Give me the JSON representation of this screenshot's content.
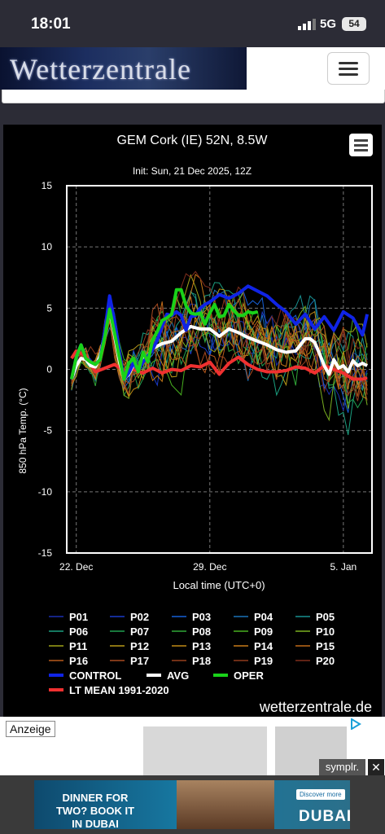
{
  "status_bar": {
    "time": "18:01",
    "network": "5G",
    "battery": "54"
  },
  "header": {
    "logo_text": "Wetterzentrale",
    "menu_icon": "hamburger-icon"
  },
  "chart_data": {
    "type": "line",
    "title": "GEM Cork (IE) 52N, 8.5W",
    "subtitle": "Init: Sun, 21 Dec 2025, 12Z",
    "xlabel": "Local time (UTC+0)",
    "ylabel": "850 hPa Temp. (°C)",
    "ylim": [
      -15,
      15
    ],
    "xlim_days": [
      21.5,
      37.5
    ],
    "xticks": [
      {
        "day": 22,
        "label": "22. Dec"
      },
      {
        "day": 29,
        "label": "29. Dec"
      },
      {
        "day": 36,
        "label": "5. Jan"
      }
    ],
    "yticks": [
      -15,
      -10,
      -5,
      0,
      5,
      10,
      15
    ],
    "grid": true,
    "credit": "wetterzentrale.de",
    "series": [
      {
        "name": "OPER",
        "color": "#19d219",
        "width": 4,
        "x": [
          21.75,
          22.0,
          22.25,
          22.5,
          22.75,
          23.0,
          23.25,
          23.5,
          23.75,
          24.0,
          24.25,
          24.5,
          24.75,
          25.0,
          25.25,
          25.5,
          25.75,
          26.0,
          26.25,
          26.5,
          26.75,
          27.0,
          27.25,
          27.5,
          27.75,
          28.0,
          28.25,
          28.5,
          28.75,
          29.0,
          29.25,
          29.5,
          29.75,
          30.0,
          30.25,
          30.5,
          30.75,
          31.0,
          31.25,
          31.5
        ],
        "y": [
          -0.8,
          1.0,
          2.0,
          0.9,
          0.6,
          0.4,
          0.8,
          2.7,
          4.9,
          3.0,
          1.0,
          -0.8,
          0.5,
          0.9,
          -0.2,
          1.4,
          0.6,
          2.4,
          3.1,
          4.0,
          4.2,
          4.5,
          6.5,
          6.5,
          5.2,
          4.6,
          4.5,
          4.6,
          3.7,
          4.6,
          5.3,
          4.3,
          4.4,
          5.3,
          4.8,
          4.4,
          4.4,
          4.7,
          4.6,
          4.7
        ]
      },
      {
        "name": "CONTROL",
        "color": "#1024e6",
        "width": 4,
        "x": [
          21.75,
          22.0,
          22.25,
          22.5,
          22.75,
          23.0,
          23.25,
          23.5,
          23.75,
          24.0,
          24.25,
          24.5,
          24.75,
          25.0,
          25.25,
          25.5,
          25.75,
          26.0,
          26.25,
          26.5,
          26.75,
          27.0,
          27.25,
          27.5,
          27.75,
          28.0,
          28.25,
          28.5,
          28.75,
          29.0,
          29.5,
          30.0,
          30.5,
          31.0,
          31.5,
          32.0,
          32.5,
          33.0,
          33.5,
          34.0,
          34.5,
          35.0,
          35.5,
          36.0,
          36.5,
          37.0,
          37.25
        ],
        "y": [
          -0.8,
          1.0,
          2.0,
          0.9,
          0.6,
          0.4,
          0.8,
          3.2,
          6.0,
          4.0,
          1.5,
          -0.8,
          -0.3,
          0.5,
          -0.1,
          0.6,
          1.1,
          1.6,
          2.4,
          3.5,
          4.5,
          4.4,
          4.7,
          4.4,
          3.2,
          4.3,
          4.4,
          5.0,
          5.3,
          5.5,
          6.1,
          5.8,
          6.2,
          6.8,
          6.4,
          6.0,
          5.3,
          4.7,
          3.7,
          4.5,
          3.3,
          4.3,
          3.2,
          4.7,
          4.2,
          2.8,
          4.5
        ]
      },
      {
        "name": "AVG",
        "color": "#ffffff",
        "width": 4,
        "x": [
          21.75,
          22.0,
          22.25,
          22.5,
          22.75,
          23.0,
          23.25,
          23.5,
          23.75,
          24.0,
          24.25,
          24.5,
          24.75,
          25.0,
          25.25,
          25.5,
          25.75,
          26.0,
          26.5,
          27.0,
          27.5,
          28.0,
          28.5,
          29.0,
          29.5,
          30.0,
          30.5,
          31.0,
          31.5,
          32.0,
          32.5,
          33.0,
          33.5,
          34.0,
          34.25,
          34.5,
          34.75,
          35.0,
          35.25,
          35.5,
          35.75,
          36.0,
          36.25,
          36.5,
          36.75,
          37.0,
          37.25
        ],
        "y": [
          -0.8,
          0.3,
          0.9,
          0.8,
          0.3,
          0.2,
          1.1,
          3.0,
          4.8,
          2.8,
          0.7,
          -0.8,
          -0.4,
          0.4,
          0.0,
          0.8,
          1.1,
          1.7,
          2.1,
          2.3,
          3.0,
          3.5,
          3.3,
          3.3,
          2.7,
          3.3,
          3.0,
          2.6,
          2.3,
          2.0,
          1.6,
          1.4,
          1.5,
          2.5,
          2.5,
          2.2,
          1.3,
          0.3,
          -0.4,
          0.8,
          0.1,
          0.3,
          -0.2,
          0.7,
          0.3,
          0.5,
          0.3
        ]
      },
      {
        "name": "LT MEAN 1991-2020",
        "color": "#f03030",
        "width": 4,
        "x": [
          21.75,
          22.0,
          22.5,
          23.0,
          23.5,
          24.0,
          24.5,
          25.0,
          25.5,
          26.0,
          26.5,
          27.0,
          27.5,
          28.0,
          28.5,
          29.0,
          29.5,
          30.0,
          30.5,
          31.0,
          31.5,
          32.0,
          32.5,
          33.0,
          33.5,
          34.0,
          34.5,
          35.0,
          35.5,
          36.0,
          36.5,
          37.0,
          37.25
        ],
        "y": [
          0.9,
          1.5,
          1.1,
          -0.2,
          0.1,
          0.4,
          -0.1,
          0.0,
          -0.3,
          0.1,
          -0.3,
          0.0,
          -0.1,
          0.3,
          0.2,
          0.6,
          -0.4,
          0.5,
          1.0,
          0.4,
          0.0,
          -0.2,
          -0.2,
          -0.1,
          0.2,
          0.1,
          -0.3,
          0.3,
          0.0,
          -0.3,
          -0.8,
          -0.8,
          -0.7
        ]
      }
    ],
    "members": [
      {
        "name": "P01",
        "color": "#1c2fb0"
      },
      {
        "name": "P02",
        "color": "#1a3ac8"
      },
      {
        "name": "P03",
        "color": "#1660d8"
      },
      {
        "name": "P04",
        "color": "#1a72b8"
      },
      {
        "name": "P05",
        "color": "#189090"
      },
      {
        "name": "P06",
        "color": "#1aa080"
      },
      {
        "name": "P07",
        "color": "#20a050"
      },
      {
        "name": "P08",
        "color": "#30a838"
      },
      {
        "name": "P09",
        "color": "#48b020"
      },
      {
        "name": "P10",
        "color": "#7ab020"
      },
      {
        "name": "P11",
        "color": "#a0a418"
      },
      {
        "name": "P12",
        "color": "#b89a18"
      },
      {
        "name": "P13",
        "color": "#c08a16"
      },
      {
        "name": "P14",
        "color": "#c87a18"
      },
      {
        "name": "P15",
        "color": "#c06a18"
      },
      {
        "name": "P16",
        "color": "#b85a1c"
      },
      {
        "name": "P17",
        "color": "#a84a20"
      },
      {
        "name": "P18",
        "color": "#98401e"
      },
      {
        "name": "P19",
        "color": "#903a1e"
      },
      {
        "name": "P20",
        "color": "#802e1c"
      }
    ]
  },
  "ad": {
    "label": "Anzeige",
    "sponsor": "symplr.",
    "close": "✕"
  },
  "bottom_ad": {
    "headline": "DINNER FOR TWO? BOOK IT IN DUBAI",
    "brand": "DUBAI",
    "cta": "Discover more"
  }
}
